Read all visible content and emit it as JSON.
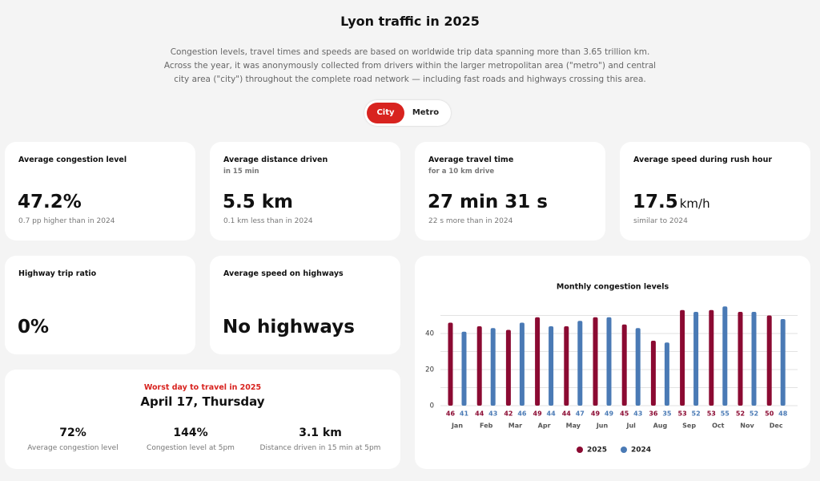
{
  "header": {
    "title": "Lyon traffic in 2025",
    "description": "Congestion levels, travel times and speeds are based on worldwide trip data spanning more than 3.65 trillion km. Across the year, it was anonymously collected from drivers within the larger metropolitan area (\"metro\") and central city area (\"city\") throughout the complete road network — including fast roads and highways crossing this area."
  },
  "toggle": {
    "options": [
      "City",
      "Metro"
    ],
    "active_index": 0
  },
  "cards": [
    {
      "label": "Average congestion level",
      "value": "47.2%",
      "note": "0.7 pp higher than in 2024"
    },
    {
      "label": "Average distance driven",
      "sublabel": "in 15 min",
      "value": "5.5 km",
      "note": "0.1 km less than in 2024"
    },
    {
      "label": "Average travel time",
      "sublabel": "for a 10 km drive",
      "value": "27 min 31 s",
      "note": "22 s more than in 2024"
    },
    {
      "label": "Average speed during rush hour",
      "value": "17.5",
      "unit": "km/h",
      "note": "similar to 2024"
    },
    {
      "label": "Highway trip ratio",
      "value": "0%"
    },
    {
      "label": "Average speed on highways",
      "value": "No highways"
    }
  ],
  "worst_day": {
    "title": "Worst day to travel in 2025",
    "date": "April 17, Thursday",
    "stats": [
      {
        "value": "72%",
        "label": "Average congestion level"
      },
      {
        "value": "144%",
        "label": "Congestion level at 5pm"
      },
      {
        "value": "3.1 km",
        "label": "Distance driven in 15 min at 5pm"
      }
    ]
  },
  "chart_data": {
    "type": "bar",
    "title": "Monthly congestion levels",
    "categories": [
      "Jan",
      "Feb",
      "Mar",
      "Apr",
      "May",
      "Jun",
      "Jul",
      "Aug",
      "Sep",
      "Oct",
      "Nov",
      "Dec"
    ],
    "series": [
      {
        "name": "2025",
        "color": "#8b0a32",
        "values": [
          46,
          44,
          42,
          49,
          44,
          49,
          45,
          36,
          53,
          53,
          52,
          50
        ]
      },
      {
        "name": "2024",
        "color": "#4a7ab5",
        "values": [
          41,
          43,
          46,
          44,
          47,
          49,
          43,
          35,
          52,
          55,
          52,
          48
        ]
      }
    ],
    "ylim": [
      0,
      50
    ],
    "yticks": [
      0,
      20,
      40
    ],
    "grid_yticks": [
      0,
      10,
      20,
      30,
      40,
      50
    ],
    "grid": true,
    "legend": "bottom"
  }
}
